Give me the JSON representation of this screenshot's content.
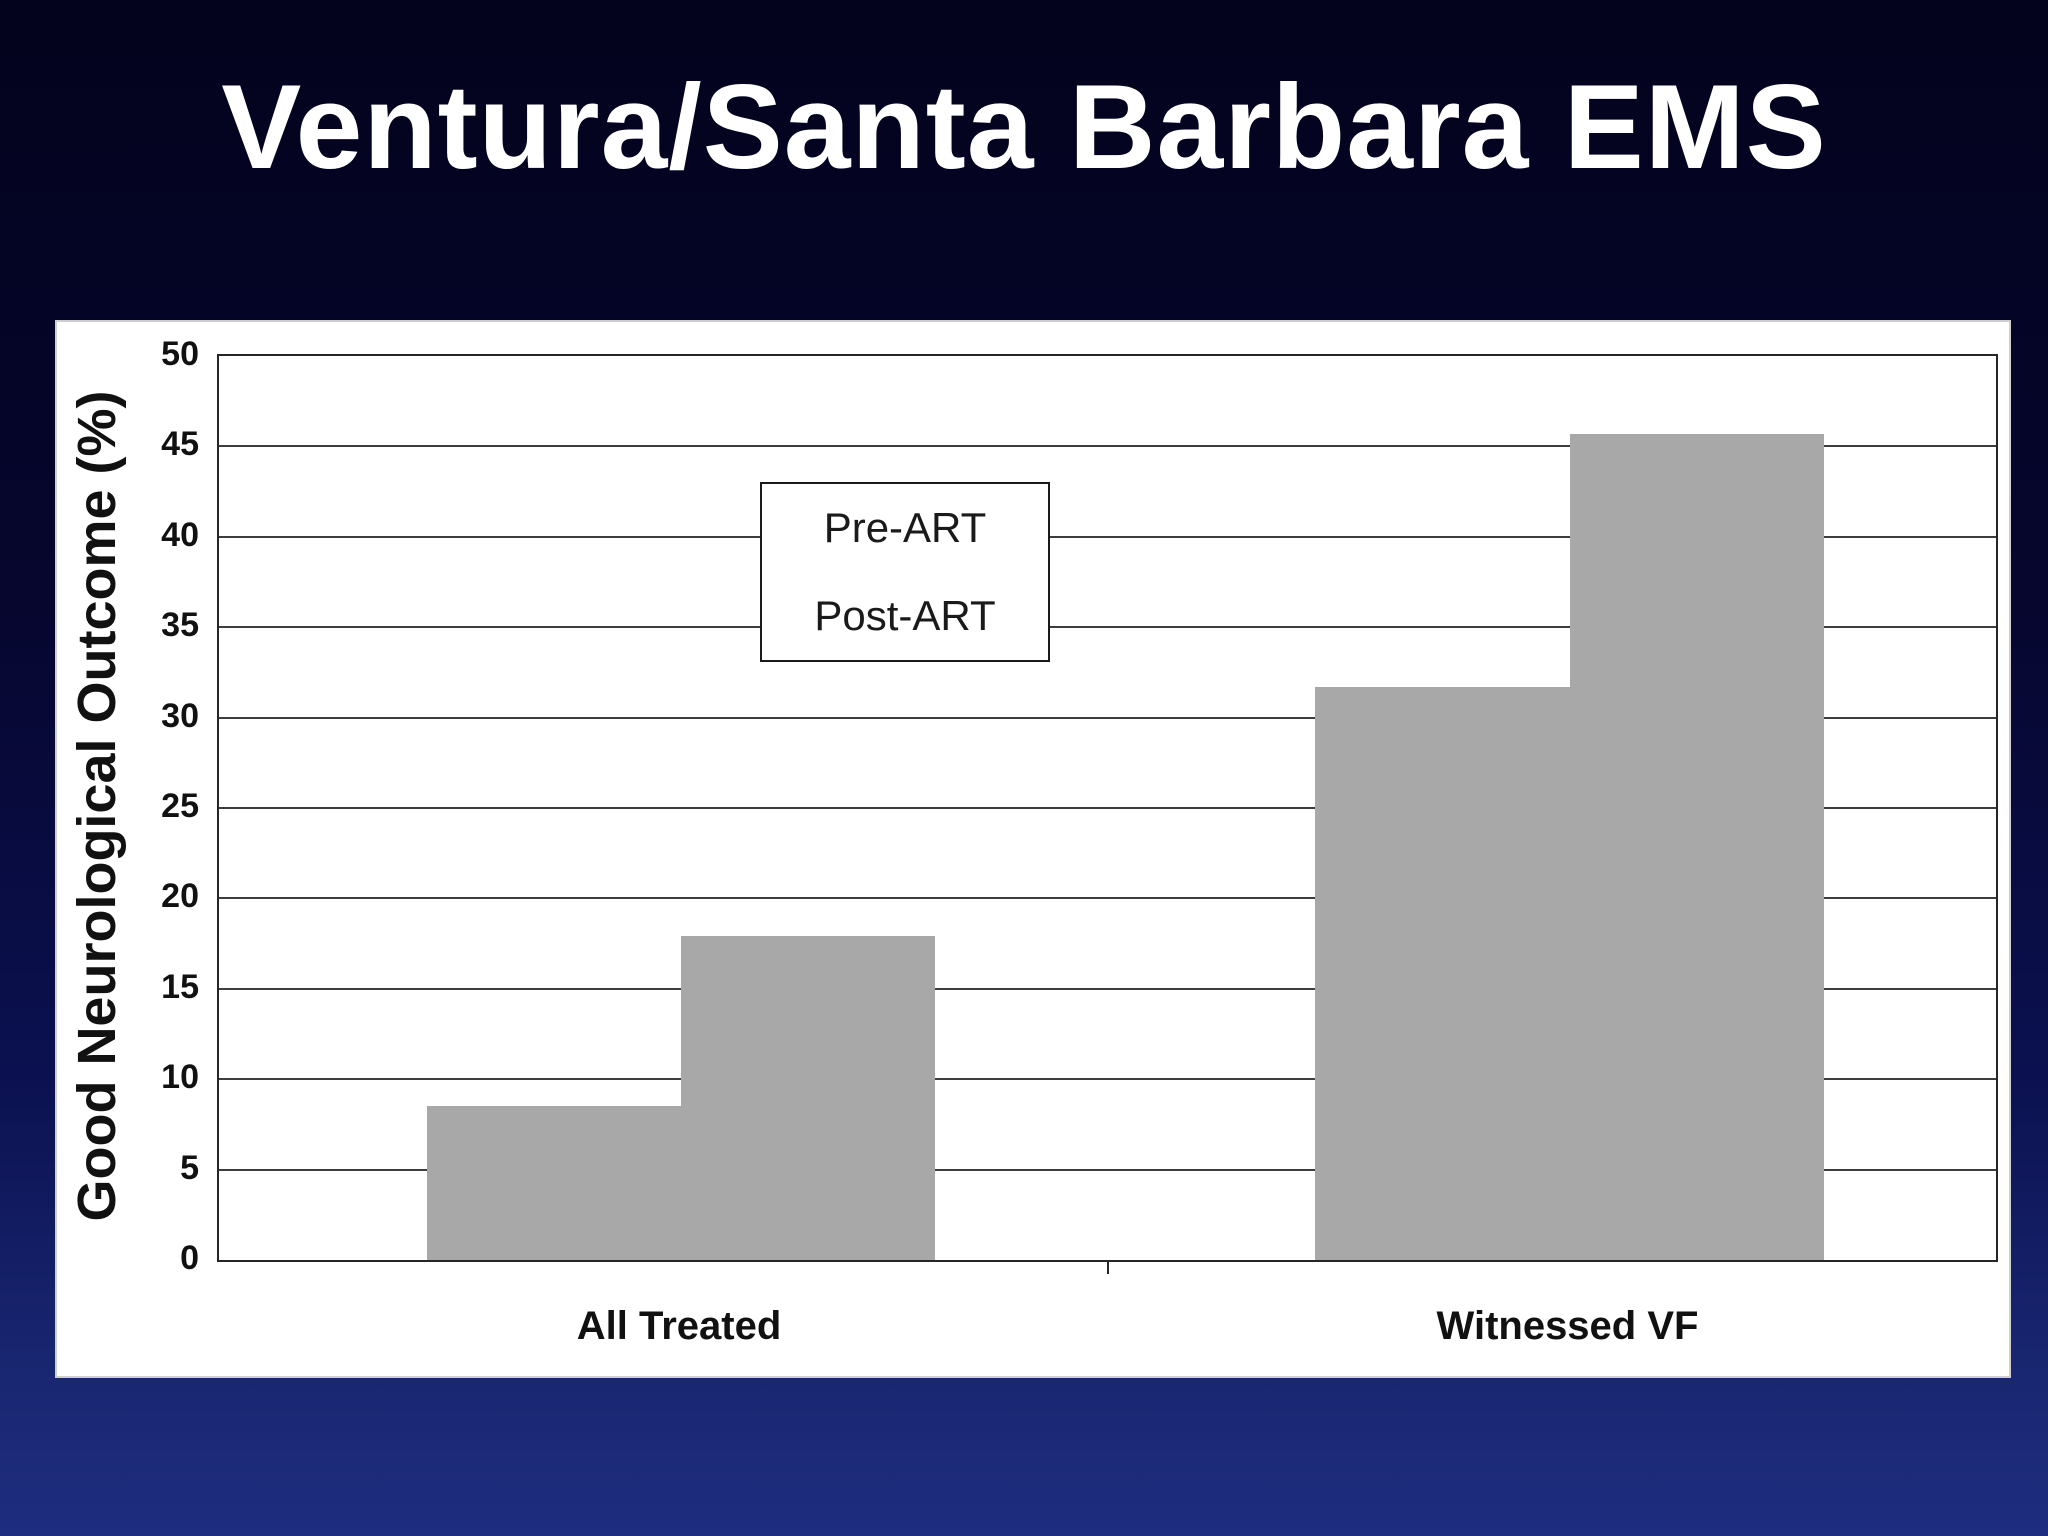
{
  "slide": {
    "title": "Ventura/Santa Barbara EMS"
  },
  "chart_data": {
    "type": "bar",
    "title": "Ventura/Santa Barbara EMS",
    "categories": [
      "All Treated",
      "Witnessed VF"
    ],
    "series": [
      {
        "name": "Pre-ART",
        "values": [
          8.5,
          31.7
        ]
      },
      {
        "name": "Post-ART",
        "values": [
          17.9,
          45.7
        ]
      }
    ],
    "xlabel": "",
    "ylabel": "Good Neurological Outcome (%)",
    "ylim": [
      0,
      50
    ],
    "yticks": [
      0,
      5,
      10,
      15,
      20,
      25,
      30,
      35,
      40,
      45,
      50
    ],
    "grid": "horizontal",
    "legend_position": "inside-top-center",
    "bar_color": "#a8a8a8",
    "gridline_color": "#3d3d3d"
  }
}
